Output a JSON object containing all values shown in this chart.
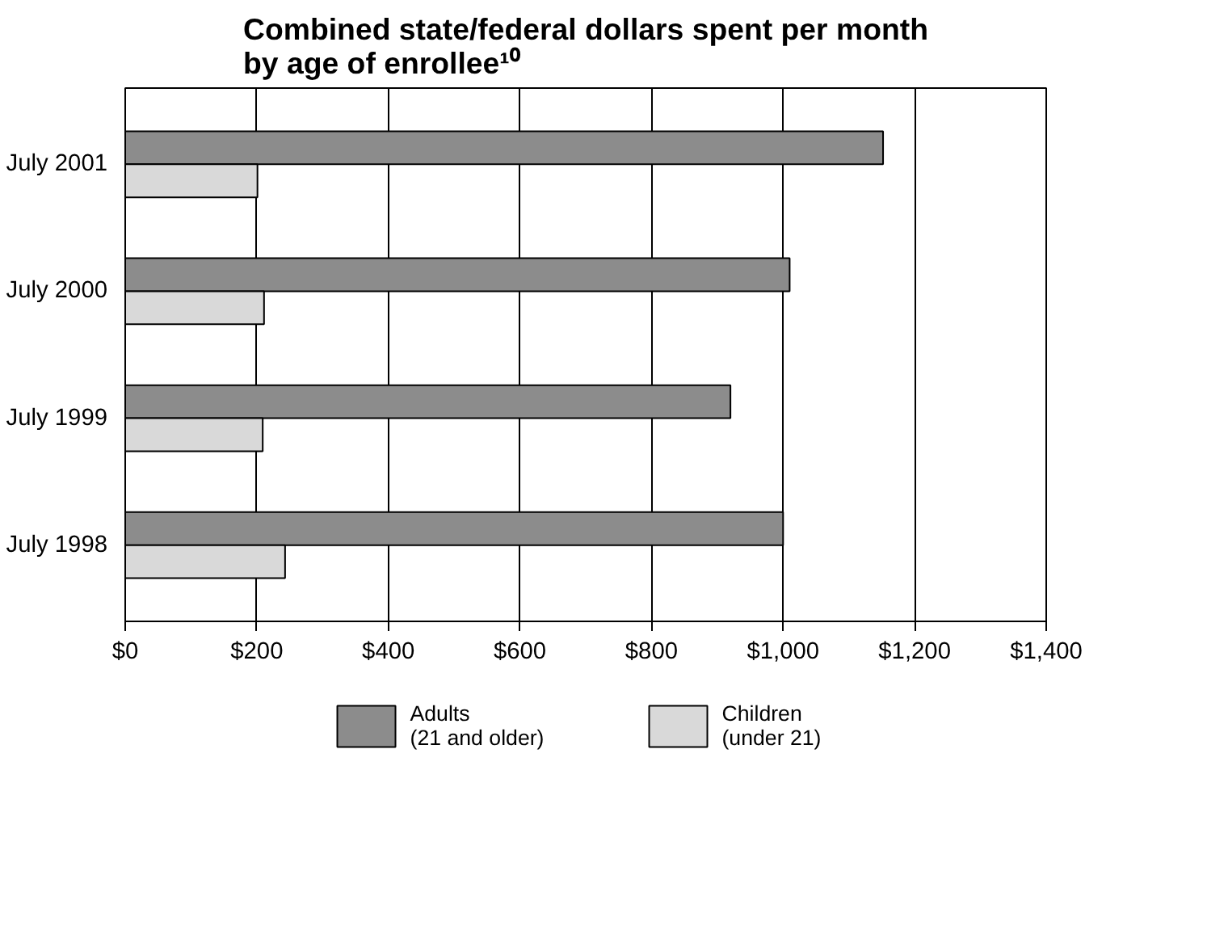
{
  "chart_data": {
    "type": "bar",
    "orientation": "horizontal",
    "title": "Combined state/federal dollars spent per month\nby age of enrollee¹⁰",
    "categories": [
      "July 2001",
      "July 2000",
      "July 1999",
      "July 1998"
    ],
    "series": [
      {
        "name": "Adults\n(21 and older)",
        "color": "#8c8c8c",
        "values": [
          1152,
          1010,
          920,
          1000
        ]
      },
      {
        "name": "Children\n(under 21)",
        "color": "#d9d9d9",
        "values": [
          201,
          211,
          209,
          243
        ]
      }
    ],
    "xlim": [
      0,
      1400
    ],
    "xticks": [
      {
        "value": 0,
        "label": "$0"
      },
      {
        "value": 200,
        "label": "$200"
      },
      {
        "value": 400,
        "label": "$400"
      },
      {
        "value": 600,
        "label": "$600"
      },
      {
        "value": 800,
        "label": "$800"
      },
      {
        "value": 1000,
        "label": "$1,000"
      },
      {
        "value": 1200,
        "label": "$1,200"
      },
      {
        "value": 1400,
        "label": "$1,400"
      }
    ],
    "grid": "x",
    "legend": "bottom"
  }
}
